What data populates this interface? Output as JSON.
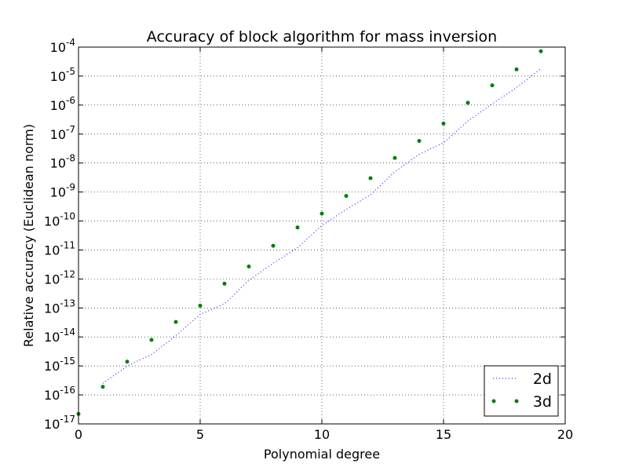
{
  "chart_data": {
    "type": "line",
    "title": "Accuracy of block algorithm for mass inversion",
    "xlabel": "Polynomial degree",
    "ylabel": "Relative accuracy (Euclidean norm)",
    "xlim": [
      0,
      20
    ],
    "ylim": [
      1e-17,
      0.0001
    ],
    "yscale": "log",
    "grid": true,
    "legend_position": "lower-right",
    "x_ticks": [
      "0",
      "5",
      "10",
      "15",
      "20"
    ],
    "y_tick_exponents": [
      "-17",
      "-16",
      "-15",
      "-14",
      "-13",
      "-12",
      "-11",
      "-10",
      "-9",
      "-8",
      "-7",
      "-6",
      "-5",
      "-4"
    ],
    "y_tick_base": "10",
    "series": [
      {
        "name": "2d",
        "style": "dotted-line",
        "color": "#0000ff",
        "x": [
          1,
          2,
          3,
          4,
          5,
          6,
          7,
          8,
          9,
          10,
          11,
          12,
          13,
          14,
          15,
          16,
          17,
          18,
          19
        ],
        "y": [
          2.5e-16,
          1e-15,
          2.5e-15,
          1.1e-14,
          6e-14,
          1.4e-13,
          9e-13,
          3.5e-12,
          1.2e-11,
          7e-11,
          2.5e-10,
          8e-10,
          5e-09,
          2e-08,
          5e-08,
          2.8e-07,
          1.1e-06,
          4e-06,
          1.8e-05
        ]
      },
      {
        "name": "3d",
        "style": "markers",
        "color": "#007f00",
        "x": [
          0,
          1,
          2,
          3,
          4,
          5,
          6,
          7,
          8,
          9,
          10,
          11,
          12,
          13,
          14,
          15,
          16,
          17,
          18,
          19
        ],
        "y": [
          2.2e-17,
          1.9e-16,
          1.4e-15,
          7.9e-15,
          3.3e-14,
          1.2e-13,
          6.9e-13,
          2.7e-12,
          1.4e-11,
          6e-11,
          1.8e-10,
          7.3e-10,
          3e-09,
          1.5e-08,
          5.8e-08,
          2.3e-07,
          1.2e-06,
          4.8e-06,
          1.7e-05,
          7.2e-05
        ]
      }
    ]
  }
}
